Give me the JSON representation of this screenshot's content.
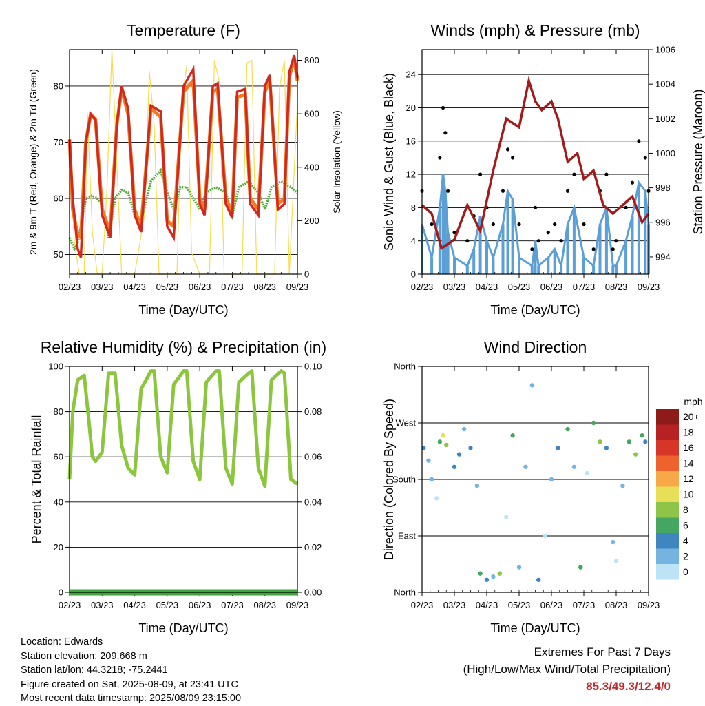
{
  "colors": {
    "temp2m": "#d02a20",
    "temp9m": "#f27a20",
    "dewpoint": "#4fae3a",
    "solar": "#f5dc55",
    "gust": "#000000",
    "wind": "#5b9fd6",
    "pressure": "#a01c1c",
    "rh": "#8cc63f",
    "precip": "#3fa53f"
  },
  "chart_data": [
    {
      "type": "line",
      "title": "Temperature (F)",
      "xlabel": "Time (Day/UTC)",
      "ylabel": "2m & 9m T (Red, Orange) & 2m Td (Green)",
      "ylabel_right": "Solar Insolation (Yellow)",
      "x_ticks": [
        "02/23",
        "03/23",
        "04/23",
        "05/23",
        "06/23",
        "07/23",
        "08/23",
        "09/23"
      ],
      "xlim": [
        0,
        7
      ],
      "ylim": [
        46.5,
        86.5
      ],
      "y_ticks": [
        50,
        60,
        70,
        80
      ],
      "ylim_right": [
        0,
        840
      ],
      "y_ticks_right": [
        0,
        200,
        400,
        600,
        800
      ],
      "grid": "horizontal",
      "series": [
        {
          "key": "temp9m",
          "x": [
            0,
            0.1,
            0.25,
            0.35,
            0.5,
            0.65,
            0.8,
            1.0,
            1.25,
            1.45,
            1.6,
            1.8,
            2.0,
            2.2,
            2.5,
            2.8,
            3.0,
            3.2,
            3.5,
            3.8,
            4.0,
            4.15,
            4.4,
            4.55,
            4.8,
            5.0,
            5.15,
            5.4,
            5.55,
            5.8,
            6.0,
            6.15,
            6.4,
            6.6,
            6.75,
            6.9,
            7.0
          ],
          "y": [
            70.5,
            58,
            53.5,
            53,
            70,
            75,
            74,
            58,
            54,
            73,
            79.5,
            75,
            58,
            55,
            76,
            74.5,
            56,
            55,
            79,
            81,
            60,
            58,
            79,
            79.5,
            60,
            57.5,
            78,
            78.5,
            60,
            58,
            79,
            81,
            59,
            60,
            81.5,
            85,
            81
          ]
        },
        {
          "key": "temp2m",
          "x": [
            0,
            0.1,
            0.25,
            0.35,
            0.5,
            0.65,
            0.8,
            1.0,
            1.25,
            1.45,
            1.6,
            1.8,
            2.0,
            2.2,
            2.5,
            2.8,
            3.0,
            3.2,
            3.5,
            3.8,
            4.0,
            4.15,
            4.4,
            4.55,
            4.8,
            5.0,
            5.15,
            5.4,
            5.55,
            5.8,
            6.0,
            6.15,
            6.4,
            6.6,
            6.75,
            6.9,
            7.0
          ],
          "y": [
            70.5,
            60,
            51,
            49.5,
            70,
            75,
            74,
            57,
            53,
            73,
            80,
            76,
            57,
            54,
            76.5,
            75.5,
            55,
            53,
            80,
            83,
            59,
            57,
            80,
            80.5,
            59,
            56.5,
            79,
            79.5,
            59,
            57,
            80,
            82,
            58,
            59,
            82.5,
            85.5,
            81.5
          ]
        },
        {
          "key": "dewpoint",
          "x": [
            0,
            0.15,
            0.25,
            0.35,
            0.5,
            0.7,
            0.85,
            1.0,
            1.2,
            1.4,
            1.6,
            1.8,
            2.0,
            2.2,
            2.5,
            2.8,
            3.0,
            3.2,
            3.4,
            3.6,
            3.8,
            4.0,
            4.2,
            4.5,
            4.8,
            5.0,
            5.2,
            5.5,
            5.8,
            6.0,
            6.2,
            6.5,
            6.8,
            7.0
          ],
          "y": [
            53,
            51,
            52,
            55,
            60,
            60.5,
            60,
            59,
            53,
            60,
            61.5,
            61,
            57,
            56,
            63,
            65,
            61,
            58,
            62,
            62,
            60,
            58,
            61,
            62,
            61,
            57,
            62,
            63,
            61,
            58,
            62,
            63,
            62,
            61
          ]
        },
        {
          "key": "solar",
          "x": [
            0,
            0.15,
            0.3,
            0.45,
            0.55,
            0.7,
            0.85,
            1.0,
            1.15,
            1.3,
            1.45,
            1.6,
            1.75,
            2.0,
            2.3,
            2.45,
            2.6,
            2.75,
            3.0,
            3.3,
            3.45,
            3.6,
            3.75,
            4.0,
            4.3,
            4.45,
            4.6,
            4.75,
            5.0,
            5.3,
            5.45,
            5.6,
            5.75,
            6.0,
            6.3,
            6.45,
            6.6,
            6.75,
            7.0
          ],
          "y": [
            450,
            120,
            0,
            0,
            600,
            160,
            0,
            0,
            320,
            850,
            420,
            0,
            0,
            0,
            220,
            760,
            560,
            0,
            0,
            0,
            650,
            780,
            80,
            0,
            0,
            800,
            720,
            0,
            0,
            0,
            790,
            800,
            0,
            0,
            0,
            700,
            800,
            0,
            640
          ]
        }
      ]
    },
    {
      "type": "scatter",
      "title": "Winds (mph) & Pressure (mb)",
      "xlabel": "Time (Day/UTC)",
      "ylabel": "Sonic Wind & Gust (Blue, Black)",
      "ylabel_right": "Station Pressure (Maroon)",
      "x_ticks": [
        "02/23",
        "03/23",
        "04/23",
        "05/23",
        "06/23",
        "07/23",
        "08/23",
        "09/23"
      ],
      "xlim": [
        0,
        7
      ],
      "ylim": [
        0,
        27
      ],
      "y_ticks": [
        0,
        4,
        8,
        12,
        16,
        20,
        24
      ],
      "ylim_right": [
        993,
        1006
      ],
      "y_ticks_right": [
        994,
        996,
        998,
        1000,
        1002,
        1004,
        1006
      ],
      "grid": "horizontal",
      "series": [
        {
          "key": "gust",
          "x": [
            0,
            0.3,
            0.55,
            0.65,
            0.72,
            0.8,
            1.0,
            1.4,
            1.6,
            1.8,
            2.0,
            2.2,
            2.5,
            2.65,
            2.8,
            3.0,
            3.4,
            3.5,
            3.6,
            3.9,
            4.1,
            4.3,
            4.5,
            4.7,
            5.0,
            5.3,
            5.5,
            5.7,
            5.9,
            6.0,
            6.3,
            6.5,
            6.7,
            6.9,
            7.0
          ],
          "y": [
            10,
            6,
            14,
            20,
            17,
            10,
            5,
            4,
            7,
            12,
            8,
            6,
            10,
            15,
            14,
            6,
            3,
            8,
            4,
            5,
            6,
            4,
            10,
            12,
            6,
            3,
            10,
            12,
            3,
            4,
            8,
            11,
            16,
            14,
            10
          ]
        },
        {
          "key": "wind",
          "x": [
            0,
            0.3,
            0.55,
            0.65,
            0.72,
            0.8,
            1.0,
            1.4,
            1.6,
            1.8,
            2.0,
            2.2,
            2.5,
            2.65,
            2.8,
            3.0,
            3.4,
            3.5,
            3.6,
            3.9,
            4.1,
            4.3,
            4.5,
            4.7,
            5.0,
            5.3,
            5.5,
            5.7,
            5.9,
            6.0,
            6.3,
            6.5,
            6.7,
            6.9,
            7.0
          ],
          "y": [
            6,
            2,
            8,
            12,
            10,
            5,
            2,
            1,
            3,
            7,
            4,
            2,
            6,
            10,
            9,
            2,
            1,
            4,
            1,
            2,
            3,
            1,
            6,
            8,
            2,
            1,
            6,
            8,
            1,
            1,
            4,
            7,
            11,
            10,
            6
          ]
        },
        {
          "key": "pressure",
          "x": [
            0,
            0.3,
            0.6,
            1.0,
            1.4,
            1.8,
            2.2,
            2.6,
            3.0,
            3.3,
            3.5,
            3.7,
            4.0,
            4.2,
            4.5,
            4.8,
            5.0,
            5.3,
            5.6,
            5.9,
            6.2,
            6.5,
            6.8,
            7.0
          ],
          "y": [
            997,
            996.5,
            994.5,
            995,
            997,
            995.5,
            999,
            1002,
            1001.5,
            1004.2,
            1003,
            1002.5,
            1003,
            1002,
            999.5,
            1000,
            998.5,
            999,
            997,
            996.5,
            997,
            997.5,
            996,
            996.5
          ]
        }
      ]
    },
    {
      "type": "line",
      "title": "Relative Humidity (%) & Precipitation (in)",
      "xlabel": "Time (Day/UTC)",
      "ylabel": "Percent & Total Rainfall",
      "x_ticks": [
        "02/23",
        "03/23",
        "04/23",
        "05/23",
        "06/23",
        "07/23",
        "08/23",
        "09/23"
      ],
      "xlim": [
        0,
        7
      ],
      "ylim": [
        0,
        100
      ],
      "y_ticks": [
        0,
        20,
        40,
        60,
        80,
        100
      ],
      "ylim_right": [
        0,
        0.1
      ],
      "y_ticks_right": [
        "0.00",
        "0.02",
        "0.04",
        "0.06",
        "0.08",
        "0.10"
      ],
      "grid": "horizontal",
      "series": [
        {
          "key": "rh",
          "x": [
            0,
            0.1,
            0.25,
            0.45,
            0.6,
            0.7,
            0.8,
            1.0,
            1.2,
            1.4,
            1.6,
            1.8,
            2.0,
            2.2,
            2.5,
            2.6,
            2.8,
            3.0,
            3.2,
            3.5,
            3.6,
            3.8,
            4.0,
            4.2,
            4.5,
            4.6,
            4.8,
            5.0,
            5.2,
            5.5,
            5.6,
            5.8,
            6.0,
            6.2,
            6.5,
            6.6,
            6.8,
            7.0
          ],
          "y": [
            50,
            80,
            94,
            96,
            75,
            60,
            58,
            62,
            97,
            97,
            65,
            55,
            52,
            90,
            98,
            98,
            60,
            53,
            92,
            98,
            98,
            58,
            50,
            93,
            98,
            98,
            55,
            48,
            93,
            97,
            98,
            55,
            47,
            94,
            98,
            97,
            50,
            48
          ]
        },
        {
          "key": "precip",
          "x": [
            0,
            7
          ],
          "y": [
            0,
            0
          ]
        }
      ]
    },
    {
      "type": "scatter",
      "title": "Wind Direction",
      "xlabel": "Time (Day/UTC)",
      "ylabel": "Direction (Colored By Speed)",
      "x_ticks": [
        "02/23",
        "03/23",
        "04/23",
        "05/23",
        "06/23",
        "07/23",
        "08/23",
        "09/23"
      ],
      "xlim": [
        0,
        7
      ],
      "ylim": [
        0,
        360
      ],
      "y_ticks": [
        "North",
        "East",
        "South",
        "West",
        "North"
      ],
      "grid": "horizontal",
      "legend": {
        "title": "mph",
        "labels": [
          "20+",
          "18",
          "16",
          "14",
          "12",
          "10",
          "8",
          "6",
          "4",
          "2",
          "0"
        ],
        "colors": [
          "#8e1a1a",
          "#b72124",
          "#d63527",
          "#ee632d",
          "#f8a947",
          "#e7df57",
          "#8ec448",
          "#45a662",
          "#3f86c1",
          "#75b3e0",
          "#bde4f6"
        ],
        "placement": "right"
      },
      "series": [
        {
          "key": "direction",
          "x": [
            0.05,
            0.2,
            0.3,
            0.45,
            0.55,
            0.65,
            0.75,
            1.0,
            1.15,
            1.3,
            1.5,
            1.7,
            1.8,
            2.0,
            2.2,
            2.4,
            2.6,
            2.8,
            3.0,
            3.2,
            3.4,
            3.6,
            3.8,
            4.0,
            4.2,
            4.5,
            4.7,
            4.9,
            5.1,
            5.3,
            5.5,
            5.7,
            5.9,
            6.0,
            6.2,
            6.4,
            6.6,
            6.8,
            6.9
          ],
          "y": [
            230,
            210,
            180,
            150,
            240,
            250,
            235,
            200,
            220,
            260,
            230,
            170,
            30,
            20,
            25,
            30,
            120,
            250,
            40,
            200,
            330,
            20,
            90,
            180,
            230,
            260,
            200,
            40,
            190,
            270,
            240,
            230,
            80,
            50,
            170,
            240,
            220,
            250,
            240
          ],
          "speed": [
            4,
            2,
            2,
            1,
            6,
            10,
            8,
            4,
            5,
            3,
            4,
            2,
            6,
            5,
            2,
            8,
            1,
            7,
            2,
            3,
            2,
            4,
            1,
            3,
            4,
            6,
            3,
            6,
            1,
            7,
            8,
            5,
            2,
            1,
            3,
            6,
            8,
            6,
            5
          ]
        }
      ]
    }
  ],
  "info": {
    "location": "Location: Edwards",
    "elevation": "Station elevation: 209.668 m",
    "latlon": "Station lat/lon: 44.3218; -75.2441",
    "created": "Figure created on Sat, 2025-08-09, at 23:41 UTC",
    "recent": "Most recent data timestamp: 2025/08/09 23:15:00"
  },
  "extremes": {
    "line1": "Extremes For Past 7 Days",
    "line2": "(High/Low/Max Wind/Total Precipitation)",
    "value": "85.3/49.3/12.4/0"
  }
}
